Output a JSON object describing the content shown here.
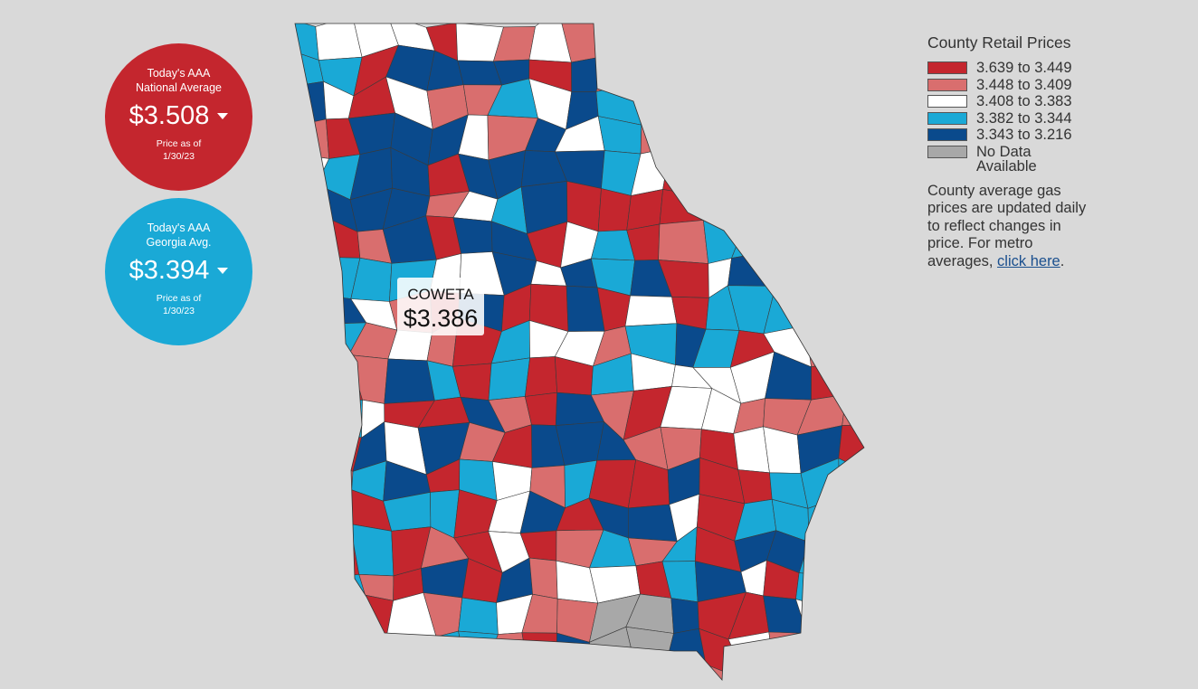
{
  "national": {
    "line1": "Today's AAA",
    "line2": "National Average",
    "price": "$3.508",
    "asof1": "Price as of",
    "asof2": "1/30/23",
    "color": "#c4262e"
  },
  "georgia": {
    "line1": "Today's AAA",
    "line2": "Georgia Avg.",
    "price": "$3.394",
    "asof1": "Price as of",
    "asof2": "1/30/23",
    "color": "#1aa9d6"
  },
  "tooltip": {
    "county": "COWETA",
    "price": "$3.386"
  },
  "legend": {
    "title": "County Retail Prices",
    "items": [
      {
        "label": "3.639 to 3.449",
        "color": "#c4262e"
      },
      {
        "label": "3.448 to 3.409",
        "color": "#d96e6e"
      },
      {
        "label": "3.408 to 3.383",
        "color": "#ffffff"
      },
      {
        "label": "3.382 to 3.344",
        "color": "#1aa9d6"
      },
      {
        "label": "3.343 to 3.216",
        "color": "#0a4a8c"
      }
    ],
    "no_data": {
      "line1": "No Data",
      "line2": "Available",
      "color": "#a8a8a8"
    }
  },
  "note": {
    "text": "County average gas prices are updated daily to reflect changes in price. For metro averages, ",
    "link": "click here",
    "end": "."
  }
}
